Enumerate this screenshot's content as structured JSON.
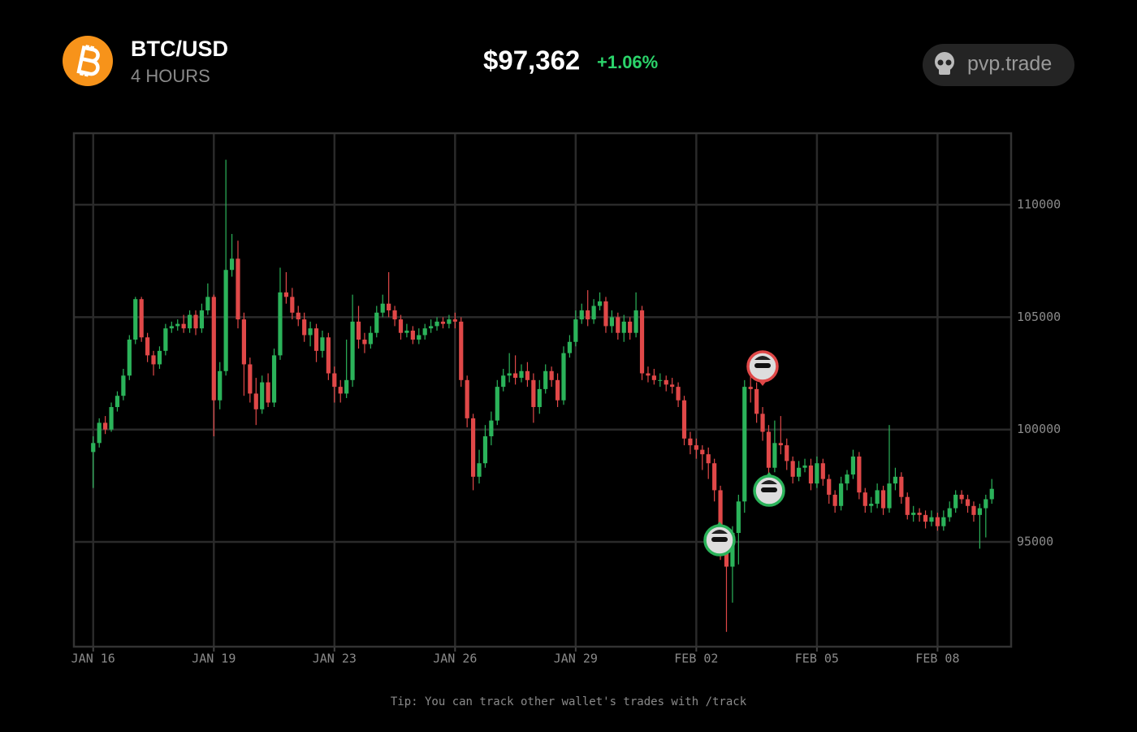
{
  "header": {
    "pair": "BTC/USD",
    "interval": "4 HOURS",
    "price": "$97,362",
    "change": "+1.06%",
    "brand": "pvp.trade"
  },
  "footer": {
    "tip": "Tip: You can track other wallet's trades with /track"
  },
  "chart_data": {
    "type": "candlestick",
    "up_color": "#2bb35a",
    "down_color": "#e04848",
    "grid": true,
    "xlim": [
      -3.2,
      152.2
    ],
    "ylim": [
      90340,
      113180
    ],
    "xticks": [
      {
        "value": 0,
        "label": "JAN 16"
      },
      {
        "value": 20,
        "label": "JAN 19"
      },
      {
        "value": 40,
        "label": "JAN 23"
      },
      {
        "value": 60,
        "label": "JAN 26"
      },
      {
        "value": 80,
        "label": "JAN 29"
      },
      {
        "value": 100,
        "label": "FEB 02"
      },
      {
        "value": 120,
        "label": "FEB 05"
      },
      {
        "value": 140,
        "label": "FEB 08"
      }
    ],
    "yticks": [
      95000,
      100000,
      105000,
      110000
    ],
    "open": [
      99000,
      99400,
      100300,
      100000,
      101000,
      101500,
      102400,
      104000,
      105800,
      104100,
      103300,
      102900,
      103500,
      104500,
      104600,
      104700,
      104500,
      105100,
      104500,
      105300,
      105900,
      101300,
      102600,
      107100,
      107600,
      104900,
      102900,
      101600,
      100900,
      102100,
      101200,
      103300,
      106100,
      105900,
      105200,
      104900,
      104200,
      104500,
      103500,
      104100,
      102500,
      101900,
      101600,
      102200,
      104800,
      104000,
      103800,
      104300,
      105200,
      105600,
      105300,
      104900,
      104300,
      104400,
      104000,
      104200,
      104500,
      104600,
      104800,
      104700,
      104900,
      104800,
      102200,
      100500,
      97900,
      98500,
      99700,
      100400,
      101900,
      102400,
      102500,
      102300,
      102600,
      102200,
      101000,
      101800,
      102600,
      102200,
      101300,
      103400,
      103900,
      104900,
      105300,
      104900,
      105500,
      105700,
      104600,
      105000,
      104300,
      104800,
      104300,
      105300,
      102500,
      102400,
      102200,
      102200,
      102000,
      101900,
      101300,
      99600,
      99300,
      99100,
      98900,
      98500,
      97300,
      95200,
      93900,
      95400,
      96800,
      101900,
      101800,
      100700,
      99900,
      98300,
      99400,
      99300,
      98600,
      97900,
      98300,
      98400,
      97600,
      98500,
      97800,
      97100,
      96600,
      97600,
      98000,
      98800,
      97200,
      96600,
      96700,
      97300,
      96500,
      97600,
      97900,
      97000,
      96200,
      96300,
      96200,
      95900,
      96100,
      95700,
      96100,
      96500,
      97100,
      96900,
      96600,
      96200,
      96500,
      96900
    ],
    "high": [
      99700,
      100500,
      100600,
      101200,
      101700,
      102700,
      104200,
      105900,
      105900,
      104300,
      103500,
      103700,
      104700,
      104800,
      104900,
      105100,
      105300,
      105300,
      105600,
      106500,
      106000,
      103000,
      112000,
      108700,
      108400,
      105200,
      103200,
      102300,
      102400,
      102500,
      103600,
      107200,
      107000,
      106300,
      105500,
      105200,
      104800,
      104700,
      104400,
      104300,
      102800,
      102200,
      104000,
      106000,
      105500,
      104300,
      104600,
      105500,
      106000,
      107000,
      105500,
      105100,
      104700,
      104600,
      104500,
      104700,
      104900,
      105000,
      105000,
      105100,
      105200,
      105000,
      102400,
      100700,
      99100,
      100200,
      100800,
      102200,
      102700,
      103400,
      103300,
      102900,
      103000,
      102500,
      102200,
      102900,
      102800,
      102500,
      103700,
      104200,
      105300,
      105600,
      106200,
      105800,
      106100,
      105900,
      105300,
      105200,
      105100,
      105000,
      106100,
      105500,
      102800,
      102700,
      102500,
      102400,
      102300,
      102100,
      101500,
      99900,
      99600,
      99300,
      99200,
      98700,
      97500,
      95500,
      95700,
      97100,
      102200,
      102400,
      102100,
      101000,
      100200,
      100400,
      100600,
      99600,
      98800,
      98600,
      98700,
      98700,
      98800,
      98700,
      98000,
      97300,
      97900,
      98200,
      99100,
      99000,
      97400,
      97000,
      97600,
      97500,
      100200,
      98300,
      98100,
      97200,
      96600,
      96500,
      96400,
      96400,
      96300,
      96400,
      96800,
      97300,
      97300,
      97100,
      96800,
      96700,
      97100,
      97800
    ],
    "low": [
      97400,
      99200,
      99800,
      99900,
      100800,
      101300,
      102200,
      103800,
      103900,
      103000,
      102400,
      102700,
      103300,
      104300,
      104400,
      104300,
      104300,
      104200,
      104300,
      105100,
      99700,
      100900,
      102400,
      106800,
      104500,
      101500,
      101200,
      100200,
      100700,
      101000,
      101000,
      103100,
      105600,
      104900,
      104600,
      103900,
      103700,
      103000,
      103200,
      102200,
      101200,
      101200,
      101400,
      101900,
      103600,
      103400,
      103600,
      104100,
      105000,
      105000,
      104600,
      104000,
      104100,
      103800,
      103800,
      104000,
      104300,
      104400,
      104500,
      104500,
      104500,
      101900,
      100100,
      97300,
      97600,
      98300,
      99300,
      100200,
      101700,
      102100,
      102000,
      102100,
      101900,
      100300,
      100700,
      101600,
      101900,
      101000,
      101100,
      103200,
      103700,
      104700,
      104600,
      104700,
      105300,
      104300,
      104300,
      104000,
      103900,
      104000,
      104100,
      102200,
      102100,
      102000,
      101900,
      101700,
      101600,
      101000,
      99300,
      98900,
      98700,
      98200,
      97800,
      96800,
      94200,
      91000,
      92300,
      94000,
      96300,
      101200,
      100300,
      99500,
      97900,
      98100,
      98900,
      98200,
      97600,
      97700,
      98100,
      97300,
      97400,
      97500,
      96700,
      96300,
      96400,
      97300,
      97800,
      96900,
      96300,
      96300,
      96500,
      96200,
      96300,
      97300,
      96700,
      96000,
      95900,
      95900,
      95600,
      95700,
      95500,
      95500,
      95900,
      96300,
      96700,
      96300,
      95900,
      94700,
      95200,
      96700
    ],
    "close": [
      99400,
      100300,
      100000,
      101000,
      101500,
      102400,
      104000,
      105800,
      104100,
      103300,
      102900,
      103500,
      104500,
      104600,
      104700,
      104500,
      105100,
      104500,
      105300,
      105900,
      101300,
      102600,
      107100,
      107600,
      104900,
      102900,
      101600,
      100900,
      102100,
      101200,
      103300,
      106100,
      105900,
      105200,
      104900,
      104200,
      104500,
      103500,
      104100,
      102500,
      101900,
      101600,
      102200,
      104800,
      104000,
      103800,
      104300,
      105200,
      105600,
      105300,
      104900,
      104300,
      104400,
      104000,
      104200,
      104500,
      104600,
      104800,
      104700,
      104900,
      104800,
      102200,
      100500,
      97900,
      98500,
      99700,
      100400,
      101900,
      102400,
      102500,
      102300,
      102600,
      102200,
      101000,
      101800,
      102600,
      102200,
      101300,
      103400,
      103900,
      104900,
      105300,
      104900,
      105500,
      105700,
      104600,
      105000,
      104300,
      104800,
      104300,
      105300,
      102500,
      102400,
      102200,
      102200,
      102000,
      101900,
      101300,
      99600,
      99300,
      99100,
      98900,
      98500,
      97300,
      95200,
      93900,
      95400,
      96800,
      101900,
      101800,
      100700,
      99900,
      98300,
      99400,
      99300,
      98600,
      97900,
      98300,
      98400,
      97600,
      98500,
      97800,
      97100,
      96600,
      97600,
      98000,
      98800,
      97200,
      96600,
      96700,
      97300,
      96500,
      97600,
      97900,
      97000,
      96200,
      96300,
      96200,
      95900,
      96100,
      95700,
      96100,
      96500,
      97100,
      96900,
      96600,
      96200,
      96500,
      96900,
      97362
    ]
  }
}
